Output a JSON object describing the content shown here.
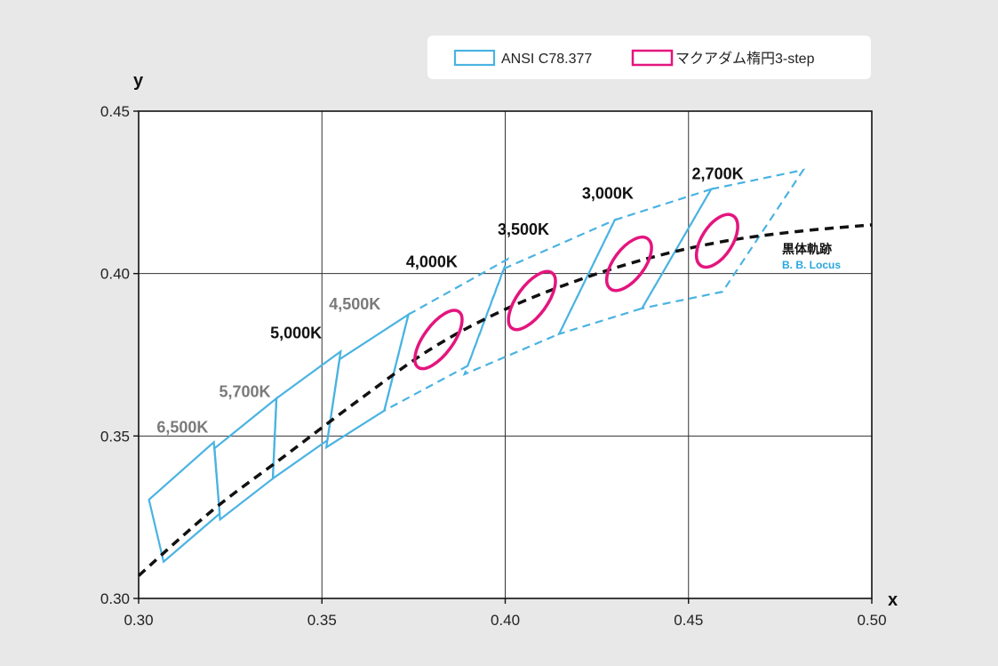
{
  "chart_data": {
    "type": "scatter",
    "title": "",
    "xlabel": "x",
    "ylabel": "y",
    "xlim": [
      0.3,
      0.5
    ],
    "ylim": [
      0.3,
      0.45
    ],
    "x_ticks": [
      {
        "value": 0.3,
        "label": "0.30"
      },
      {
        "value": 0.35,
        "label": "0.35"
      },
      {
        "value": 0.4,
        "label": "0.40"
      },
      {
        "value": 0.45,
        "label": "0.45"
      },
      {
        "value": 0.5,
        "label": "0.50"
      }
    ],
    "y_ticks": [
      {
        "value": 0.3,
        "label": "0.30"
      },
      {
        "value": 0.35,
        "label": "0.35"
      },
      {
        "value": 0.4,
        "label": "0.40"
      },
      {
        "value": 0.45,
        "label": "0.45"
      }
    ],
    "grid": true,
    "legend": {
      "placement": "top-right",
      "items": [
        {
          "label": "ANSI C78.377",
          "color": "#4ab3e2"
        },
        {
          "label": "マクアダム楕円3-step",
          "color": "#e4157e"
        }
      ]
    },
    "locus": {
      "label_jp": "黒体軌跡",
      "label_en": "B. B. Locus",
      "label_en_color": "#2aa6de",
      "color": "#111111",
      "points": [
        [
          0.3,
          0.307
        ],
        [
          0.32,
          0.327
        ],
        [
          0.34,
          0.344
        ],
        [
          0.36,
          0.361
        ],
        [
          0.38,
          0.377
        ],
        [
          0.4,
          0.389
        ],
        [
          0.42,
          0.398
        ],
        [
          0.44,
          0.405
        ],
        [
          0.46,
          0.41
        ],
        [
          0.48,
          0.413
        ],
        [
          0.5,
          0.415
        ]
      ]
    },
    "quadrangles": [
      {
        "cct": "6,500K",
        "label_color": "#7a7a7a",
        "style": "solid",
        "label_at": [
          0.319,
          0.351
        ],
        "points": [
          [
            0.3028,
            0.3304
          ],
          [
            0.3205,
            0.3481
          ],
          [
            0.3221,
            0.3261
          ],
          [
            0.3068,
            0.3113
          ]
        ]
      },
      {
        "cct": "5,700K",
        "label_color": "#7a7a7a",
        "style": "solid",
        "label_at": [
          0.336,
          0.362
        ],
        "points": [
          [
            0.3207,
            0.3462
          ],
          [
            0.3376,
            0.3616
          ],
          [
            0.3366,
            0.3369
          ],
          [
            0.3222,
            0.3243
          ]
        ]
      },
      {
        "cct": "5,000K",
        "label_color": "#111111",
        "style": "solid",
        "label_at": [
          0.35,
          0.38
        ],
        "points": [
          [
            0.3376,
            0.3616
          ],
          [
            0.3551,
            0.376
          ],
          [
            0.3515,
            0.3487
          ],
          [
            0.3366,
            0.3369
          ]
        ]
      },
      {
        "cct": "4,500K",
        "label_color": "#7a7a7a",
        "style": "solid",
        "label_at": [
          0.366,
          0.389
        ],
        "points": [
          [
            0.3548,
            0.3736
          ],
          [
            0.3736,
            0.3874
          ],
          [
            0.367,
            0.3578
          ],
          [
            0.3512,
            0.3465
          ]
        ]
      },
      {
        "cct": "4,000K",
        "label_color": "#111111",
        "style": "dashed",
        "label_at": [
          0.387,
          0.402
        ],
        "points": [
          [
            0.3736,
            0.3874
          ],
          [
            0.4006,
            0.4044
          ],
          [
            0.3898,
            0.3716
          ],
          [
            0.367,
            0.3578
          ]
        ]
      },
      {
        "cct": "3,500K",
        "label_color": "#111111",
        "style": "dashed",
        "label_at": [
          0.412,
          0.412
        ],
        "points": [
          [
            0.3996,
            0.4015
          ],
          [
            0.4299,
            0.4165
          ],
          [
            0.4147,
            0.3814
          ],
          [
            0.3889,
            0.369
          ]
        ]
      },
      {
        "cct": "3,000K",
        "label_color": "#111111",
        "style": "dashed",
        "label_at": [
          0.435,
          0.423
        ],
        "points": [
          [
            0.4299,
            0.4165
          ],
          [
            0.4562,
            0.426
          ],
          [
            0.4373,
            0.3893
          ],
          [
            0.4147,
            0.3814
          ]
        ]
      },
      {
        "cct": "2,700K",
        "label_color": "#111111",
        "style": "dashed",
        "label_at": [
          0.465,
          0.429
        ],
        "points": [
          [
            0.4562,
            0.426
          ],
          [
            0.4813,
            0.4319
          ],
          [
            0.4593,
            0.3944
          ],
          [
            0.4373,
            0.3893
          ]
        ]
      }
    ],
    "ellipses": [
      {
        "cct": "4,000K",
        "cx": 0.3818,
        "cy": 0.3797,
        "a": 0.0094,
        "b": 0.004,
        "angle_deg": 53.7
      },
      {
        "cct": "3,500K",
        "cx": 0.4073,
        "cy": 0.3917,
        "a": 0.0093,
        "b": 0.0041,
        "angle_deg": 54.0
      },
      {
        "cct": "3,000K",
        "cx": 0.4338,
        "cy": 0.403,
        "a": 0.0085,
        "b": 0.0042,
        "angle_deg": 53.2
      },
      {
        "cct": "2,700K",
        "cx": 0.4578,
        "cy": 0.4101,
        "a": 0.0081,
        "b": 0.0042,
        "angle_deg": 57.2
      }
    ]
  }
}
